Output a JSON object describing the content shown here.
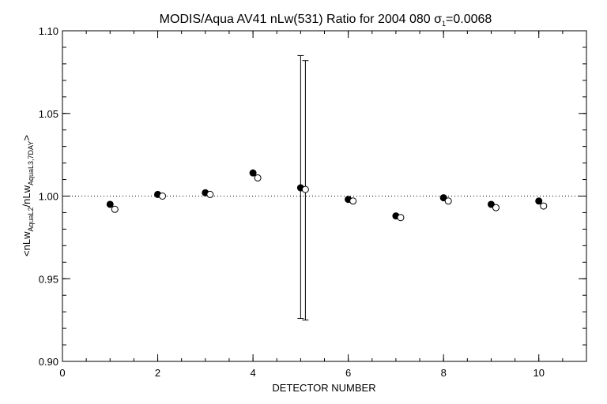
{
  "chart_data": {
    "type": "scatter",
    "title_text": "MODIS/Aqua AV41 nLw(531) Ratio for 2004 080 ",
    "title_sigma": "σ",
    "title_sigma_sub": "1",
    "title_sigma_value": "=0.0068",
    "xlabel": "DETECTOR NUMBER",
    "ylabel": {
      "pre": "<nLw",
      "sub1": "AquaL2",
      "mid": "/nLw",
      "sub2": "AquaL3,7DAY",
      "post": ">"
    },
    "xlim": [
      0,
      11
    ],
    "ylim": [
      0.9,
      1.1
    ],
    "x_ticks": [
      0,
      2,
      4,
      6,
      8,
      10
    ],
    "x_tick_labels": [
      "0",
      "2",
      "4",
      "6",
      "8",
      "10"
    ],
    "y_ticks": [
      0.9,
      0.95,
      1.0,
      1.05,
      1.1
    ],
    "y_tick_labels": [
      "0.90",
      "0.95",
      "1.00",
      "1.05",
      "1.10"
    ],
    "reference_line": {
      "y": 1.0,
      "style": "dotted"
    },
    "series": [
      {
        "marker": "filled-circle",
        "x": [
          1,
          2,
          3,
          4,
          5,
          6,
          7,
          8,
          9,
          10
        ],
        "y": [
          0.995,
          1.001,
          1.002,
          1.014,
          1.005,
          0.998,
          0.988,
          0.999,
          0.995,
          0.997
        ],
        "error_bars": [
          {
            "x": 5,
            "low": 0.926,
            "high": 1.085
          }
        ]
      },
      {
        "marker": "open-circle",
        "x": [
          1.1,
          2.1,
          3.1,
          4.1,
          5.1,
          6.1,
          7.1,
          8.1,
          9.1,
          10.1
        ],
        "y": [
          0.992,
          1.0,
          1.001,
          1.011,
          1.004,
          0.997,
          0.987,
          0.997,
          0.993,
          0.994
        ],
        "error_bars": [
          {
            "x": 5.1,
            "low": 0.925,
            "high": 1.082
          }
        ]
      }
    ],
    "colors": {
      "axes": "#000000",
      "background": "#ffffff"
    }
  }
}
